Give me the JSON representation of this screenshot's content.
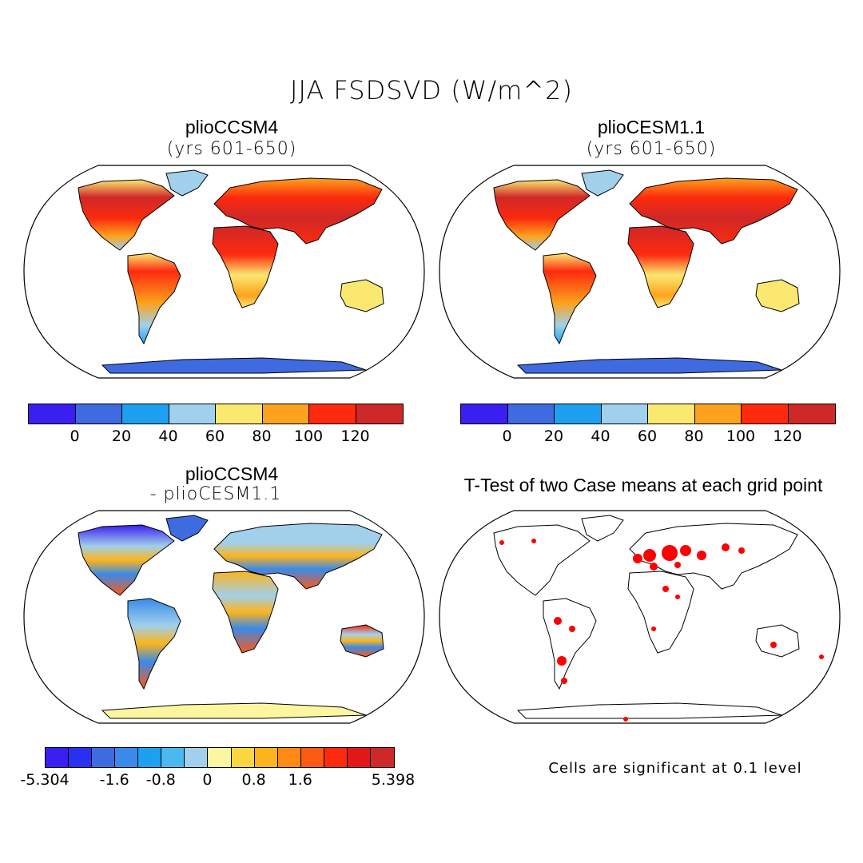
{
  "title": "JJA FSDSVD (W/m^2)",
  "panels": {
    "top_left": {
      "title": "plioCCSM4",
      "subtitle": "(yrs 601-650)"
    },
    "top_right": {
      "title": "plioCESM1.1",
      "subtitle": "(yrs 601-650)"
    },
    "bottom_left": {
      "title": "plioCCSM4",
      "subtitle": "- plioCESM1.1"
    },
    "bottom_right": {
      "title": "T-Test of two Case means at each grid point"
    }
  },
  "colorbar_abs": {
    "colors": [
      "#3a1ff0",
      "#3f6be0",
      "#1ea0f0",
      "#a0d0ec",
      "#fbe870",
      "#fda21c",
      "#fd2a0e",
      "#cf2828"
    ],
    "labels": [
      "0",
      "20",
      "40",
      "60",
      "80",
      "100",
      "120"
    ]
  },
  "colorbar_diff": {
    "colors": [
      "#3a1ff0",
      "#2a30f0",
      "#3f6be0",
      "#3a8aea",
      "#1ea0f0",
      "#4cb8f0",
      "#a0d0ec",
      "#fdf6a0",
      "#fbd640",
      "#fdb41c",
      "#fd8a14",
      "#fd5a14",
      "#fd2a0e",
      "#e01818",
      "#cf2828"
    ],
    "labels": [
      "-5.304",
      "-1.6",
      "-0.8",
      "0",
      "0.8",
      "1.6",
      "5.398"
    ]
  },
  "footnote": "Cells are significant at 0.1 level",
  "icons": {
    "map": "world-map-robinson"
  }
}
